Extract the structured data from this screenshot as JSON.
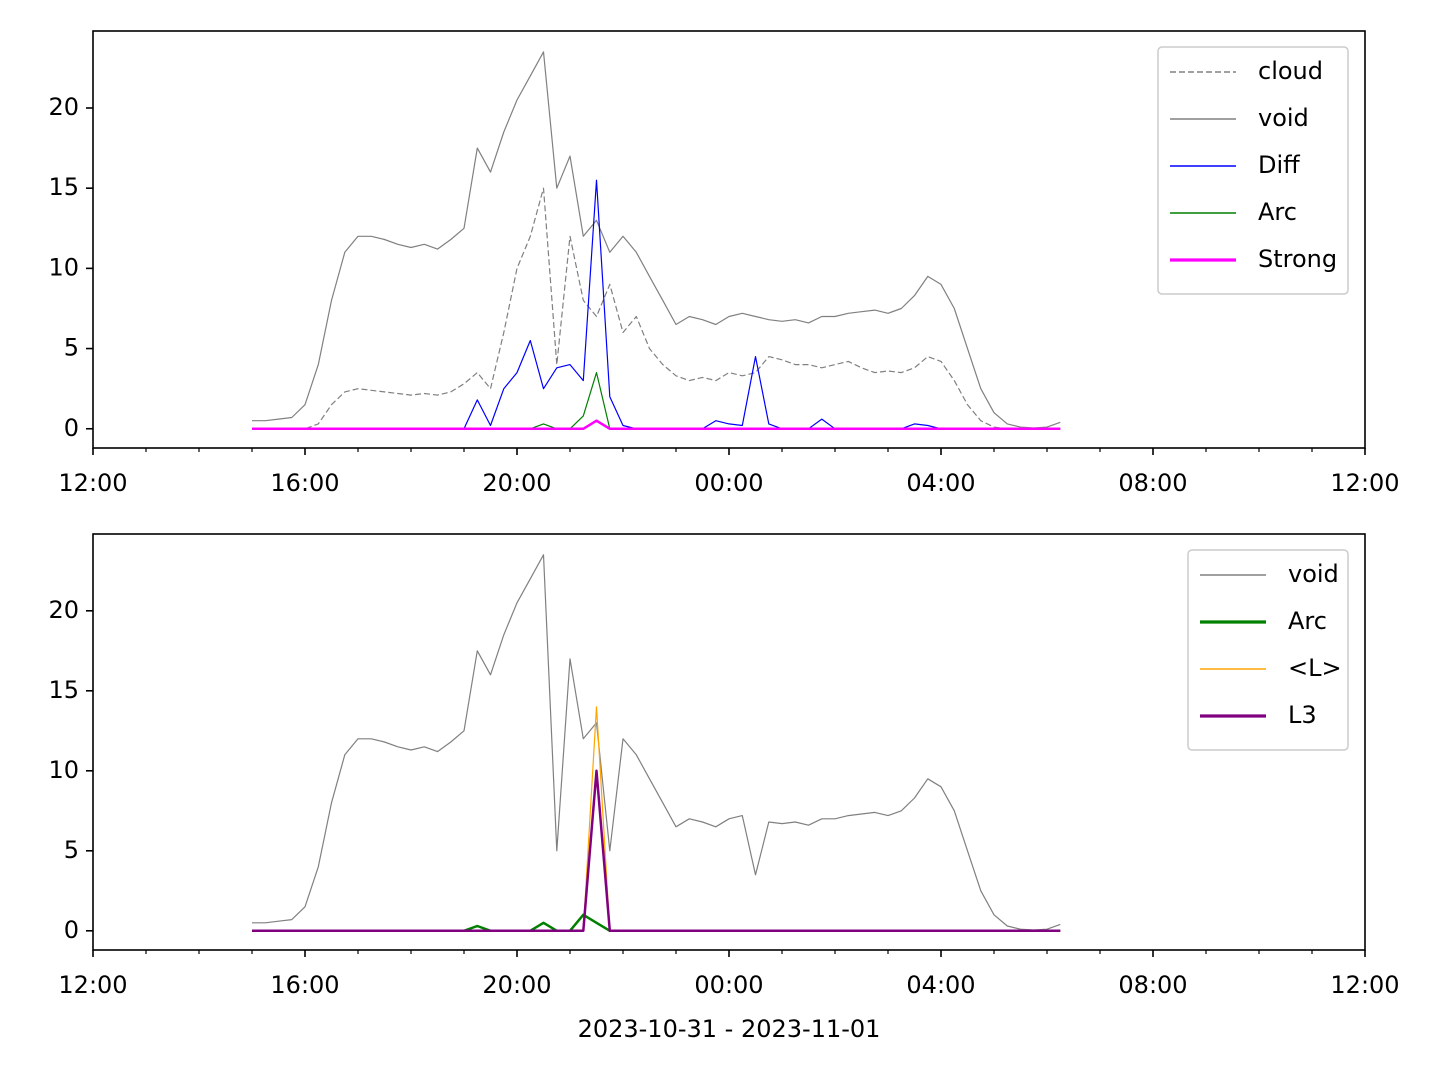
{
  "chart_data": [
    {
      "type": "line",
      "x": [
        3,
        3.25,
        3.5,
        3.75,
        4,
        4.25,
        4.5,
        4.75,
        5,
        5.25,
        5.5,
        5.75,
        6,
        6.25,
        6.5,
        6.75,
        7,
        7.25,
        7.5,
        7.75,
        8,
        8.25,
        8.5,
        8.75,
        9,
        9.25,
        9.5,
        9.75,
        10,
        10.25,
        10.5,
        10.75,
        11,
        11.25,
        11.5,
        11.75,
        12,
        12.25,
        12.5,
        12.75,
        13,
        13.25,
        13.5,
        13.75,
        14,
        14.25,
        14.5,
        14.75,
        15,
        15.25,
        15.5,
        15.75,
        16,
        16.25,
        16.5,
        16.75,
        17,
        17.25,
        17.5,
        17.75,
        18,
        18.25
      ],
      "series": [
        {
          "name": "cloud",
          "color": "#808080",
          "dashed": true,
          "width": 1.2,
          "values": [
            0,
            0,
            0,
            0,
            0,
            0.3,
            1.5,
            2.3,
            2.5,
            2.4,
            2.3,
            2.2,
            2.1,
            2.2,
            2.1,
            2.3,
            2.8,
            3.5,
            2.5,
            6,
            10,
            12,
            15,
            4,
            12,
            8,
            7,
            9,
            6,
            7,
            5,
            4,
            3.3,
            3,
            3.2,
            3,
            3.5,
            3.3,
            3.5,
            4.5,
            4.3,
            4,
            4,
            3.8,
            4,
            4.2,
            3.8,
            3.5,
            3.6,
            3.5,
            3.8,
            4.5,
            4.2,
            3,
            1.5,
            0.5,
            0.1,
            0,
            0,
            0,
            0,
            0
          ]
        },
        {
          "name": "void",
          "color": "#808080",
          "width": 1.2,
          "values": [
            0.5,
            0.5,
            0.6,
            0.7,
            1.5,
            4,
            8,
            11,
            12,
            12,
            11.8,
            11.5,
            11.3,
            11.5,
            11.2,
            11.8,
            12.5,
            17.5,
            16,
            18.5,
            20.5,
            22,
            23.5,
            15,
            17,
            12,
            13,
            11,
            12,
            11,
            9.5,
            8,
            6.5,
            7,
            6.8,
            6.5,
            7,
            7.2,
            7,
            6.8,
            6.7,
            6.8,
            6.6,
            7,
            7,
            7.2,
            7.3,
            7.4,
            7.2,
            7.5,
            8.3,
            9.5,
            9,
            7.5,
            5,
            2.5,
            1,
            0.3,
            0.1,
            0.05,
            0.1,
            0.4
          ]
        },
        {
          "name": "Diff",
          "color": "#0000ff",
          "width": 1.2,
          "values": [
            0,
            0,
            0,
            0,
            0,
            0,
            0,
            0,
            0,
            0,
            0,
            0,
            0,
            0,
            0,
            0,
            0,
            1.8,
            0.2,
            2.5,
            3.5,
            5.5,
            2.5,
            3.8,
            4,
            3,
            15.5,
            2,
            0.2,
            0,
            0,
            0,
            0,
            0,
            0,
            0.5,
            0.3,
            0.2,
            4.5,
            0.3,
            0,
            0,
            0,
            0.6,
            0,
            0,
            0,
            0,
            0,
            0,
            0.3,
            0.2,
            0,
            0,
            0,
            0,
            0,
            0,
            0,
            0,
            0,
            0
          ]
        },
        {
          "name": "Arc",
          "color": "#008000",
          "width": 1.2,
          "values": [
            0,
            0,
            0,
            0,
            0,
            0,
            0,
            0,
            0,
            0,
            0,
            0,
            0,
            0,
            0,
            0,
            0,
            0,
            0,
            0,
            0,
            0,
            0.3,
            0,
            0,
            0.8,
            3.5,
            0,
            0,
            0,
            0,
            0,
            0,
            0,
            0,
            0,
            0,
            0,
            0,
            0,
            0,
            0,
            0,
            0,
            0,
            0,
            0,
            0,
            0,
            0,
            0,
            0,
            0,
            0,
            0,
            0,
            0,
            0,
            0,
            0,
            0,
            0
          ]
        },
        {
          "name": "Strong",
          "color": "#ff00ff",
          "width": 2.5,
          "values": [
            0,
            0,
            0,
            0,
            0,
            0,
            0,
            0,
            0,
            0,
            0,
            0,
            0,
            0,
            0,
            0,
            0,
            0,
            0,
            0,
            0,
            0,
            0,
            0,
            0,
            0,
            0.5,
            0,
            0,
            0,
            0,
            0,
            0,
            0,
            0,
            0,
            0,
            0,
            0,
            0,
            0,
            0,
            0,
            0,
            0,
            0,
            0,
            0,
            0,
            0,
            0,
            0,
            0,
            0,
            0,
            0,
            0,
            0,
            0,
            0,
            0,
            0
          ]
        }
      ],
      "xlim": [
        0,
        24
      ],
      "xticks": [
        {
          "value": 0,
          "label": "12:00"
        },
        {
          "value": 4,
          "label": "16:00"
        },
        {
          "value": 8,
          "label": "20:00"
        },
        {
          "value": 12,
          "label": "00:00"
        },
        {
          "value": 16,
          "label": "04:00"
        },
        {
          "value": 20,
          "label": "08:00"
        },
        {
          "value": 24,
          "label": "12:00"
        }
      ],
      "xminorticks": [
        1,
        2,
        3,
        5,
        6,
        7,
        9,
        10,
        11,
        13,
        14,
        15,
        17,
        18,
        19,
        21,
        22,
        23
      ],
      "ylim": [
        -1.2,
        24.8
      ],
      "yticks": [
        0,
        5,
        10,
        15,
        20
      ],
      "legend": "upper right"
    },
    {
      "type": "line",
      "x": [
        3,
        3.25,
        3.5,
        3.75,
        4,
        4.25,
        4.5,
        4.75,
        5,
        5.25,
        5.5,
        5.75,
        6,
        6.25,
        6.5,
        6.75,
        7,
        7.25,
        7.5,
        7.75,
        8,
        8.25,
        8.5,
        8.75,
        9,
        9.25,
        9.5,
        9.75,
        10,
        10.25,
        10.5,
        10.75,
        11,
        11.25,
        11.5,
        11.75,
        12,
        12.25,
        12.5,
        12.75,
        13,
        13.25,
        13.5,
        13.75,
        14,
        14.25,
        14.5,
        14.75,
        15,
        15.25,
        15.5,
        15.75,
        16,
        16.25,
        16.5,
        16.75,
        17,
        17.25,
        17.5,
        17.75,
        18,
        18.25
      ],
      "series": [
        {
          "name": "void",
          "color": "#808080",
          "width": 1.2,
          "values": [
            0.5,
            0.5,
            0.6,
            0.7,
            1.5,
            4,
            8,
            11,
            12,
            12,
            11.8,
            11.5,
            11.3,
            11.5,
            11.2,
            11.8,
            12.5,
            17.5,
            16,
            18.5,
            20.5,
            22,
            23.5,
            5,
            17,
            12,
            13,
            5,
            12,
            11,
            9.5,
            8,
            6.5,
            7,
            6.8,
            6.5,
            7,
            7.2,
            3.5,
            6.8,
            6.7,
            6.8,
            6.6,
            7,
            7,
            7.2,
            7.3,
            7.4,
            7.2,
            7.5,
            8.3,
            9.5,
            9,
            7.5,
            5,
            2.5,
            1,
            0.3,
            0.1,
            0.05,
            0.1,
            0.4
          ]
        },
        {
          "name": "Arc",
          "color": "#008000",
          "width": 2.5,
          "values": [
            0,
            0,
            0,
            0,
            0,
            0,
            0,
            0,
            0,
            0,
            0,
            0,
            0,
            0,
            0,
            0,
            0,
            0.3,
            0,
            0,
            0,
            0,
            0.5,
            0,
            0,
            1,
            0.5,
            0,
            0,
            0,
            0,
            0,
            0,
            0,
            0,
            0,
            0,
            0,
            0,
            0,
            0,
            0,
            0,
            0,
            0,
            0,
            0,
            0,
            0,
            0,
            0,
            0,
            0,
            0,
            0,
            0,
            0,
            0,
            0,
            0,
            0,
            0
          ]
        },
        {
          "name": "<L>",
          "color": "#ffa500",
          "width": 1.2,
          "values": [
            0,
            0,
            0,
            0,
            0,
            0,
            0,
            0,
            0,
            0,
            0,
            0,
            0,
            0,
            0,
            0,
            0,
            0,
            0,
            0,
            0,
            0,
            0,
            0,
            0,
            0,
            14,
            0,
            0,
            0,
            0,
            0,
            0,
            0,
            0,
            0,
            0,
            0,
            0,
            0,
            0,
            0,
            0,
            0,
            0,
            0,
            0,
            0,
            0,
            0,
            0,
            0,
            0,
            0,
            0,
            0,
            0,
            0,
            0,
            0,
            0,
            0
          ]
        },
        {
          "name": "L3",
          "color": "#800080",
          "width": 2.5,
          "values": [
            0,
            0,
            0,
            0,
            0,
            0,
            0,
            0,
            0,
            0,
            0,
            0,
            0,
            0,
            0,
            0,
            0,
            0,
            0,
            0,
            0,
            0,
            0,
            0,
            0,
            0,
            10,
            0,
            0,
            0,
            0,
            0,
            0,
            0,
            0,
            0,
            0,
            0,
            0,
            0,
            0,
            0,
            0,
            0,
            0,
            0,
            0,
            0,
            0,
            0,
            0,
            0,
            0,
            0,
            0,
            0,
            0,
            0,
            0,
            0,
            0,
            0
          ]
        }
      ],
      "xlim": [
        0,
        24
      ],
      "xticks": [
        {
          "value": 0,
          "label": "12:00"
        },
        {
          "value": 4,
          "label": "16:00"
        },
        {
          "value": 8,
          "label": "20:00"
        },
        {
          "value": 12,
          "label": "00:00"
        },
        {
          "value": 16,
          "label": "04:00"
        },
        {
          "value": 20,
          "label": "08:00"
        },
        {
          "value": 24,
          "label": "12:00"
        }
      ],
      "xminorticks": [
        1,
        2,
        3,
        5,
        6,
        7,
        9,
        10,
        11,
        13,
        14,
        15,
        17,
        18,
        19,
        21,
        22,
        23
      ],
      "ylim": [
        -1.2,
        24.8
      ],
      "yticks": [
        0,
        5,
        10,
        15,
        20
      ],
      "legend": "upper right",
      "xlabel": "2023-10-31 - 2023-11-01"
    }
  ]
}
